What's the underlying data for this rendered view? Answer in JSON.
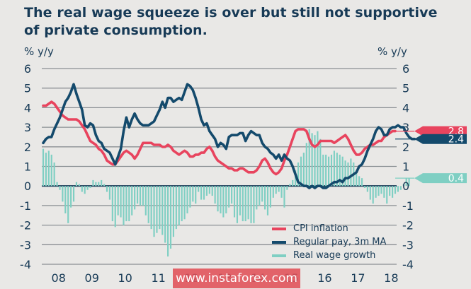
{
  "title": "The real wage squeeze is over but still not supportive of private consumption.",
  "watermark": "www.instaforex.com",
  "chart_data": {
    "type": "line",
    "title": "The real wage squeeze is over but still not supportive of private consumption.",
    "ylabel_left": "% y/y",
    "ylabel_right": "% y/y",
    "ylim": [
      -4,
      6
    ],
    "yticks": [
      6,
      5,
      4,
      3,
      2,
      1,
      0,
      -1,
      -2,
      -3,
      -4
    ],
    "xlim": [
      "2008-01",
      "2018-02"
    ],
    "xtick_labels": [
      "08",
      "09",
      "10",
      "11",
      "12",
      "13",
      "14",
      "15",
      "16",
      "17",
      "18"
    ],
    "grid": true,
    "legend_position": "bottom-right",
    "start_month": "2008-01",
    "series": [
      {
        "name": "CPI inflation",
        "type": "line",
        "color": "#e8445e",
        "end_label": "2.8",
        "values": [
          4.1,
          4.1,
          4.2,
          4.3,
          4.2,
          4.0,
          3.8,
          3.6,
          3.5,
          3.4,
          3.4,
          3.4,
          3.4,
          3.3,
          3.1,
          2.9,
          2.6,
          2.3,
          2.2,
          2.1,
          1.9,
          1.8,
          1.6,
          1.3,
          1.2,
          1.1,
          1.1,
          1.3,
          1.5,
          1.7,
          1.8,
          1.7,
          1.6,
          1.4,
          1.6,
          1.9,
          2.2,
          2.2,
          2.2,
          2.2,
          2.1,
          2.1,
          2.1,
          2.0,
          2.0,
          2.1,
          2.0,
          1.8,
          1.7,
          1.6,
          1.7,
          1.8,
          1.7,
          1.5,
          1.5,
          1.6,
          1.6,
          1.7,
          1.7,
          1.9,
          2.0,
          1.8,
          1.5,
          1.3,
          1.2,
          1.1,
          1.0,
          0.9,
          0.9,
          0.8,
          0.8,
          0.9,
          0.9,
          0.8,
          0.7,
          0.7,
          0.7,
          0.8,
          1.0,
          1.3,
          1.4,
          1.2,
          0.9,
          0.7,
          0.6,
          0.7,
          0.9,
          1.3,
          1.6,
          2.0,
          2.4,
          2.8,
          2.9,
          2.9,
          2.9,
          2.8,
          2.4,
          2.1,
          2.0,
          2.1,
          2.3,
          2.3,
          2.3,
          2.3,
          2.3,
          2.2,
          2.3,
          2.4,
          2.5,
          2.6,
          2.4,
          2.1,
          1.8,
          1.6,
          1.6,
          1.7,
          1.9,
          2.0,
          2.1,
          2.1,
          2.2,
          2.3,
          2.3,
          2.5,
          2.6,
          2.7,
          2.8,
          2.8
        ]
      },
      {
        "name": "Regular pay, 3m MA",
        "type": "line",
        "color": "#144a6c",
        "end_label": "2.4",
        "values": [
          2.2,
          2.4,
          2.5,
          2.5,
          2.9,
          3.2,
          3.5,
          3.9,
          4.3,
          4.5,
          4.8,
          5.2,
          4.7,
          4.3,
          3.9,
          3.1,
          3.0,
          3.2,
          3.1,
          2.6,
          2.3,
          2.2,
          1.9,
          1.8,
          1.7,
          1.4,
          1.1,
          1.5,
          1.9,
          2.8,
          3.5,
          3.0,
          3.4,
          3.7,
          3.4,
          3.2,
          3.1,
          3.1,
          3.1,
          3.2,
          3.3,
          3.6,
          3.9,
          4.3,
          4.0,
          4.5,
          4.5,
          4.3,
          4.4,
          4.5,
          4.4,
          4.8,
          5.2,
          5.1,
          4.9,
          4.5,
          4.0,
          3.4,
          3.1,
          3.2,
          2.8,
          2.6,
          2.4,
          2.0,
          2.2,
          2.1,
          1.9,
          2.5,
          2.6,
          2.6,
          2.6,
          2.7,
          2.7,
          2.3,
          2.6,
          2.8,
          2.7,
          2.6,
          2.6,
          2.2,
          2.0,
          1.9,
          1.7,
          1.6,
          1.4,
          1.6,
          1.3,
          1.6,
          1.4,
          1.3,
          1.0,
          0.6,
          0.2,
          0.1,
          0.0,
          0.0,
          -0.1,
          0.0,
          -0.1,
          0.0,
          0.0,
          -0.1,
          -0.1,
          0.0,
          0.1,
          0.2,
          0.2,
          0.3,
          0.2,
          0.4,
          0.4,
          0.5,
          0.6,
          0.7,
          1.0,
          1.1,
          1.4,
          1.8,
          2.1,
          2.4,
          2.8,
          3.0,
          2.9,
          2.6,
          2.6,
          2.9,
          3.0,
          3.0,
          3.1,
          3.0,
          3.0,
          2.7,
          2.5,
          2.4,
          2.4
        ]
      },
      {
        "name": "Real wage growth",
        "type": "bar",
        "color": "#7fcfc3",
        "end_label": "0.4",
        "values": [
          1.9,
          1.7,
          1.8,
          1.6,
          1.2,
          0.2,
          -0.2,
          -0.8,
          -1.4,
          -1.9,
          -1.1,
          -0.8,
          0.2,
          0.1,
          -0.3,
          -0.4,
          -0.2,
          -0.1,
          0.3,
          0.2,
          0.2,
          0.3,
          0.1,
          -0.3,
          -0.7,
          -1.8,
          -2.1,
          -1.5,
          -1.6,
          -2.0,
          -1.8,
          -1.8,
          -1.5,
          -1.2,
          -0.9,
          -1.0,
          -1.0,
          -1.5,
          -1.9,
          -2.2,
          -2.6,
          -2.4,
          -2.2,
          -2.5,
          -2.9,
          -3.6,
          -3.2,
          -2.6,
          -2.2,
          -2.0,
          -1.8,
          -1.7,
          -1.4,
          -1.1,
          -0.8,
          -0.9,
          -0.3,
          -0.7,
          -0.7,
          -0.5,
          -0.4,
          -0.5,
          -0.9,
          -1.3,
          -1.4,
          -1.6,
          -1.4,
          -1.1,
          -0.9,
          -1.6,
          -1.9,
          -1.5,
          -1.8,
          -1.8,
          -1.7,
          -1.9,
          -1.9,
          -1.2,
          -1.0,
          -0.8,
          -1.2,
          -1.5,
          -1.1,
          -0.6,
          -0.4,
          -0.3,
          -0.6,
          -1.1,
          -0.2,
          0.1,
          0.3,
          0.8,
          1.2,
          1.5,
          1.7,
          2.2,
          2.9,
          2.7,
          2.6,
          2.8,
          2.4,
          1.6,
          1.6,
          1.5,
          1.6,
          1.8,
          1.7,
          1.6,
          1.5,
          1.3,
          1.2,
          1.4,
          1.2,
          0.8,
          0.5,
          0.4,
          -0.1,
          -0.3,
          -0.7,
          -0.9,
          -0.6,
          -0.5,
          -0.4,
          -0.6,
          -0.9,
          -0.5,
          -0.6,
          -0.4,
          -0.3,
          -0.2,
          0.1,
          0.4,
          0.4
        ]
      }
    ]
  },
  "legend": [
    {
      "label": "CPI inflation",
      "color": "#e8445e"
    },
    {
      "label": "Regular pay, 3m MA",
      "color": "#144a6c"
    },
    {
      "label": "Real wage growth",
      "color": "#7fcfc3"
    }
  ]
}
